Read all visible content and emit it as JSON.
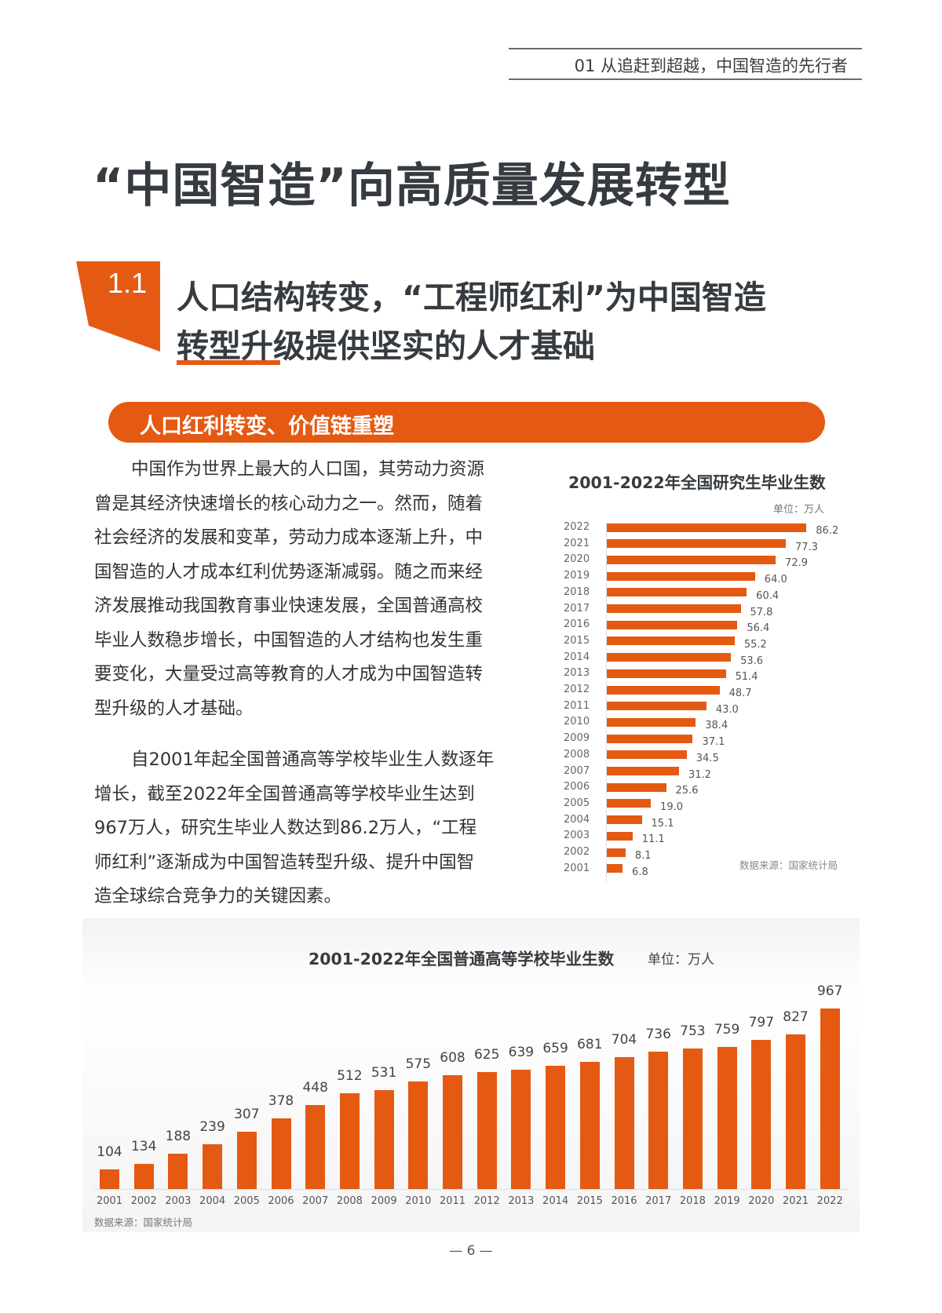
{
  "header": {
    "section_label": "01 从追赶到超越，中国智造的先行者"
  },
  "main_title": "“中国智造”向高质量发展转型",
  "section": {
    "number": "1.1",
    "heading_line1": "人口结构转变，“工程师红利”为中国智造",
    "heading_line2": "转型升级提供坚实的人才基础"
  },
  "banner": {
    "label": "人口红利转变、价值链重塑"
  },
  "paragraphs": [
    {
      "lines": [
        "中国作为世界上最大的人口国，其劳动力资源",
        "曾是其经济快速增长的核心动力之一。然而，随着",
        "社会经济的发展和变革，劳动力成本逐渐上升，中",
        "国智造的人才成本红利优势逐渐减弱。随之而来经",
        "济发展推动我国教育事业快速发展，全国普通高校",
        "毕业人数稳步增长，中国智造的人才结构也发生重",
        "要变化，大量受过高等教育的人才成为中国智造转",
        "型升级的人才基础。"
      ]
    },
    {
      "lines": [
        "自2001年起全国普通高等学校毕业生人数逐年",
        "增长，截至2022年全国普通高等学校毕业生达到",
        "967万人，研究生毕业人数达到86.2万人，“工程",
        "师红利”逐渐成为中国智造转型升级、提升中国智",
        "造全球综合竞争力的关键因素。"
      ]
    }
  ],
  "colors": {
    "accent": "#e45a12",
    "title": "#353b40",
    "text": "#333333",
    "panel_bg": "#f4f4f4"
  },
  "chart_data": [
    {
      "type": "bar",
      "orientation": "horizontal",
      "title": "2001-2022年全国研究生毕业生数",
      "unit_label": "单位：万人",
      "source": "数据来源：国家统计局",
      "xlabel": "",
      "ylabel": "",
      "grid": false,
      "categories": [
        "2022",
        "2021",
        "2020",
        "2019",
        "2018",
        "2017",
        "2016",
        "2015",
        "2014",
        "2013",
        "2012",
        "2011",
        "2010",
        "2009",
        "2008",
        "2007",
        "2006",
        "2005",
        "2004",
        "2003",
        "2002",
        "2001"
      ],
      "values": [
        86.2,
        77.3,
        72.9,
        64.0,
        60.4,
        57.8,
        56.4,
        55.2,
        53.6,
        51.4,
        48.7,
        43.0,
        38.4,
        37.1,
        34.5,
        31.2,
        25.6,
        19.0,
        15.1,
        11.1,
        8.1,
        6.8
      ],
      "value_labels": [
        "86.2",
        "77.3",
        "72.9",
        "64.0",
        "60.4",
        "57.8",
        "56.4",
        "55.2",
        "53.6",
        "51.4",
        "48.7",
        "43.0",
        "38.4",
        "37.1",
        "34.5",
        "31.2",
        "25.6",
        "19.0",
        "15.1",
        "11.1",
        "8.1",
        "6.8"
      ]
    },
    {
      "type": "bar",
      "orientation": "vertical",
      "title": "2001-2022年全国普通高等学校毕业生数",
      "unit_label": "单位：万人",
      "source": "数据来源：国家统计局",
      "xlabel": "",
      "ylabel": "",
      "grid": false,
      "categories": [
        "2001",
        "2002",
        "2003",
        "2004",
        "2005",
        "2006",
        "2007",
        "2008",
        "2009",
        "2010",
        "2011",
        "2012",
        "2013",
        "2014",
        "2015",
        "2016",
        "2017",
        "2018",
        "2019",
        "2020",
        "2021",
        "2022"
      ],
      "values": [
        104,
        134,
        188,
        239,
        307,
        378,
        448,
        512,
        531,
        575,
        608,
        625,
        639,
        659,
        681,
        704,
        736,
        753,
        759,
        797,
        827,
        967
      ]
    }
  ],
  "page_number": "— 6 —"
}
